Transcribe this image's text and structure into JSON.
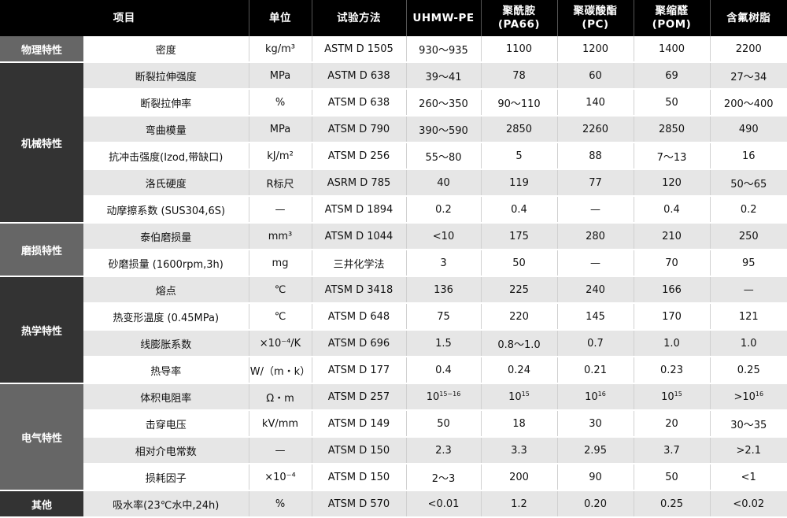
{
  "header": [
    "项目",
    "单位",
    "试验方法",
    "UHMW-PE",
    "聚酰胺\n(PA66)",
    "聚碳酸酯\n(PC)",
    "聚缩醛\n(POM)",
    "含氟树脂"
  ],
  "colors": {
    "header_bg": "#000000",
    "category_light": "#666666",
    "category_dark": "#333333",
    "row_alt": "#e6e6e6"
  },
  "groups": [
    {
      "category": "物理特性",
      "shade": "light",
      "rows": [
        [
          "密度",
          "kg/m³",
          "ASTM D 1505",
          "930～935",
          "1100",
          "1200",
          "1400",
          "2200"
        ]
      ]
    },
    {
      "category": "机械特性",
      "shade": "dark",
      "rows": [
        [
          "断裂拉伸强度",
          "MPa",
          "ASTM D 638",
          "39～41",
          "78",
          "60",
          "69",
          "27～34"
        ],
        [
          "断裂拉伸率",
          "%",
          "ATSM D 638",
          "260～350",
          "90～110",
          "140",
          "50",
          "200～400"
        ],
        [
          "弯曲模量",
          "MPa",
          "ATSM D 790",
          "390～590",
          "2850",
          "2260",
          "2850",
          "490"
        ],
        [
          "抗冲击强度(Izod,带缺口)",
          "kJ/m²",
          "ATSM D 256",
          "55～80",
          "5",
          "88",
          "7～13",
          "16"
        ],
        [
          "洛氏硬度",
          "R标尺",
          "ASRM D 785",
          "40",
          "119",
          "77",
          "120",
          "50～65"
        ],
        [
          "动摩擦系数 (SUS304,6S)",
          "—",
          "ATSM D 1894",
          "0.2",
          "0.4",
          "—",
          "0.4",
          "0.2"
        ]
      ]
    },
    {
      "category": "磨损特性",
      "shade": "light",
      "rows": [
        [
          "泰伯磨损量",
          "mm³",
          "ATSM D 1044",
          "<10",
          "175",
          "280",
          "210",
          "250"
        ],
        [
          "砂磨损量 (1600rpm,3h)",
          "mg",
          "三井化学法",
          "3",
          "50",
          "—",
          "70",
          "95"
        ]
      ]
    },
    {
      "category": "热学特性",
      "shade": "dark",
      "rows": [
        [
          "熔点",
          "℃",
          "ATSM D 3418",
          "136",
          "225",
          "240",
          "166",
          "—"
        ],
        [
          "热变形温度 (0.45MPa)",
          "℃",
          "ATSM D 648",
          "75",
          "220",
          "145",
          "170",
          "121"
        ],
        [
          "线膨胀系数",
          "×10⁻⁴/K",
          "ATSM D 696",
          "1.5",
          "0.8～1.0",
          "0.7",
          "1.0",
          "1.0"
        ],
        [
          "热导率",
          "W/（m・k）",
          "ATSM D 177",
          "0.4",
          "0.24",
          "0.21",
          "0.23",
          "0.25"
        ]
      ]
    },
    {
      "category": "电气特性",
      "shade": "light",
      "rows": [
        [
          "体积电阻率",
          "Ω・m",
          "ATSM D 257",
          {
            "base": "10",
            "sup": "15~16"
          },
          {
            "base": "10",
            "sup": "15"
          },
          {
            "base": "10",
            "sup": "16"
          },
          {
            "base": "10",
            "sup": "15"
          },
          {
            "base": ">10",
            "sup": "16"
          }
        ],
        [
          "击穿电压",
          "kV/mm",
          "ATSM D 149",
          "50",
          "18",
          "30",
          "20",
          "30～35"
        ],
        [
          "相对介电常数",
          "—",
          "ATSM D 150",
          "2.3",
          "3.3",
          "2.95",
          "3.7",
          ">2.1"
        ],
        [
          "损耗因子",
          "×10⁻⁴",
          "ATSM D 150",
          "2～3",
          "200",
          "90",
          "50",
          "<1"
        ]
      ]
    },
    {
      "category": "其他",
      "shade": "dark",
      "rows": [
        [
          "吸水率(23℃水中,24h)",
          "%",
          "ATSM D 570",
          "<0.01",
          "1.2",
          "0.20",
          "0.25",
          "<0.02"
        ]
      ]
    }
  ]
}
